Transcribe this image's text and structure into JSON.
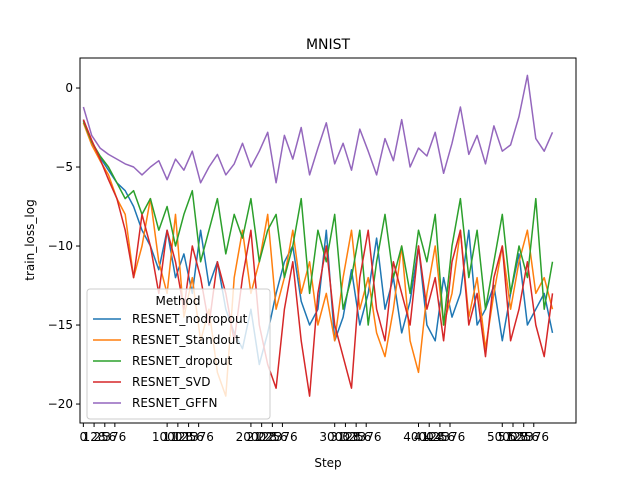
{
  "chart_data": {
    "type": "line",
    "title": "MNIST",
    "xlabel": "Step",
    "ylabel": "train_loss_log",
    "xlim": [
      -40,
      5880
    ],
    "ylim": [
      -21.2,
      1.9
    ],
    "x_ticks": [
      0,
      128,
      256,
      376,
      1000,
      1128,
      1256,
      1376,
      2000,
      2128,
      2256,
      2376,
      3000,
      3128,
      3256,
      3376,
      4000,
      4128,
      4256,
      4376,
      5000,
      5128,
      5256,
      5376
    ],
    "x_tick_labels": [
      "0",
      "128",
      "256",
      "376",
      "1000",
      "1128",
      "1256",
      "1376",
      "2000",
      "2128",
      "2256",
      "2376",
      "3000",
      "3128",
      "3256",
      "3376",
      "4000",
      "4128",
      "4256",
      "4376",
      "5000",
      "5128",
      "5256",
      "5376"
    ],
    "y_ticks": [
      0,
      -5,
      -10,
      -15,
      -20
    ],
    "y_tick_labels": [
      "0",
      "−5",
      "−10",
      "−15",
      "−20"
    ],
    "legend": {
      "title": "Method",
      "position": "lower-left"
    },
    "grid": false,
    "series": [
      {
        "name": "RESNET_nodropout",
        "color": "#1f77b4",
        "x": [
          0,
          100,
          200,
          300,
          400,
          500,
          600,
          700,
          800,
          900,
          1000,
          1100,
          1200,
          1300,
          1400,
          1500,
          1600,
          1700,
          1800,
          1900,
          2000,
          2100,
          2200,
          2300,
          2400,
          2500,
          2600,
          2700,
          2800,
          2900,
          3000,
          3100,
          3200,
          3300,
          3400,
          3500,
          3600,
          3700,
          3800,
          3900,
          4000,
          4100,
          4200,
          4300,
          4400,
          4500,
          4600,
          4700,
          4800,
          4900,
          5000,
          5100,
          5200,
          5300,
          5400,
          5500,
          5600
        ],
        "y": [
          -2,
          -3.5,
          -4.4,
          -5.2,
          -6,
          -6.5,
          -7.5,
          -9,
          -10,
          -11.5,
          -9,
          -12,
          -10.5,
          -13,
          -9,
          -12.5,
          -11,
          -14,
          -15.5,
          -16.5,
          -14,
          -17.5,
          -15.5,
          -13,
          -11,
          -10,
          -13.5,
          -15,
          -14,
          -9,
          -16,
          -14.5,
          -11.5,
          -15,
          -13,
          -9.5,
          -14,
          -12,
          -15.5,
          -13.5,
          -10,
          -15,
          -16,
          -12,
          -14.5,
          -13,
          -9,
          -15,
          -14,
          -12.5,
          -16,
          -13,
          -10.5,
          -15,
          -14,
          -13,
          -15.5
        ]
      },
      {
        "name": "RESNET_Standout",
        "color": "#ff7f0e",
        "x": [
          0,
          100,
          200,
          300,
          400,
          500,
          600,
          700,
          800,
          900,
          1000,
          1100,
          1200,
          1300,
          1400,
          1500,
          1600,
          1700,
          1800,
          1900,
          2000,
          2100,
          2200,
          2300,
          2400,
          2500,
          2600,
          2700,
          2800,
          2900,
          3000,
          3100,
          3200,
          3300,
          3400,
          3500,
          3600,
          3700,
          3800,
          3900,
          4000,
          4100,
          4200,
          4300,
          4400,
          4500,
          4600,
          4700,
          4800,
          4900,
          5000,
          5100,
          5200,
          5300,
          5400,
          5500,
          5600
        ],
        "y": [
          -2.2,
          -3.6,
          -4.6,
          -5.5,
          -7,
          -8,
          -12,
          -10,
          -7,
          -11,
          -13,
          -8,
          -14.5,
          -12,
          -16,
          -14,
          -18,
          -19.5,
          -12,
          -9,
          -13,
          -11,
          -8,
          -14,
          -12,
          -9,
          -13,
          -11,
          -15,
          -13,
          -16,
          -12,
          -9,
          -14,
          -12,
          -15.5,
          -17,
          -14,
          -10,
          -16,
          -18,
          -13,
          -10,
          -15,
          -13,
          -9,
          -14.5,
          -12,
          -16.5,
          -13,
          -10,
          -14,
          -11,
          -9,
          -13,
          -12,
          -14
        ]
      },
      {
        "name": "RESNET_dropout",
        "color": "#2ca02c",
        "x": [
          0,
          100,
          200,
          300,
          400,
          500,
          600,
          700,
          800,
          900,
          1000,
          1100,
          1200,
          1300,
          1400,
          1500,
          1600,
          1700,
          1800,
          1900,
          2000,
          2100,
          2200,
          2300,
          2400,
          2500,
          2600,
          2700,
          2800,
          2900,
          3000,
          3100,
          3200,
          3300,
          3400,
          3500,
          3600,
          3700,
          3800,
          3900,
          4000,
          4100,
          4200,
          4300,
          4400,
          4500,
          4600,
          4700,
          4800,
          4900,
          5000,
          5100,
          5200,
          5300,
          5400,
          5500,
          5600
        ],
        "y": [
          -2.1,
          -3.4,
          -4.3,
          -5,
          -6,
          -7,
          -6.5,
          -8,
          -7,
          -9,
          -7.5,
          -10,
          -8,
          -6.5,
          -11,
          -9,
          -7,
          -10.5,
          -8,
          -9.5,
          -7,
          -11,
          -9,
          -8,
          -12,
          -10,
          -7,
          -13,
          -9,
          -11,
          -8,
          -14,
          -12,
          -9,
          -15,
          -11,
          -8,
          -12,
          -10,
          -13,
          -9,
          -11,
          -8,
          -15,
          -10,
          -7,
          -12,
          -9,
          -14,
          -11,
          -8,
          -13,
          -10,
          -12,
          -7,
          -14,
          -11
        ]
      },
      {
        "name": "RESNET_SVD",
        "color": "#d62728",
        "x": [
          0,
          100,
          200,
          300,
          400,
          500,
          600,
          700,
          800,
          900,
          1000,
          1100,
          1200,
          1300,
          1400,
          1500,
          1600,
          1700,
          1800,
          1900,
          2000,
          2100,
          2200,
          2300,
          2400,
          2500,
          2600,
          2700,
          2800,
          2900,
          3000,
          3100,
          3200,
          3300,
          3400,
          3500,
          3600,
          3700,
          3800,
          3900,
          4000,
          4100,
          4200,
          4300,
          4400,
          4500,
          4600,
          4700,
          4800,
          4900,
          5000,
          5100,
          5200,
          5300,
          5400,
          5500,
          5600
        ],
        "y": [
          -2,
          -3.3,
          -4.5,
          -5.8,
          -7,
          -9,
          -12,
          -8,
          -10,
          -13,
          -9,
          -11,
          -14,
          -10,
          -12,
          -15,
          -11,
          -13,
          -16,
          -12,
          -9,
          -15,
          -17.5,
          -19,
          -14,
          -11,
          -16,
          -19.5,
          -13,
          -10,
          -15,
          -17,
          -19,
          -12,
          -9,
          -14,
          -16,
          -11,
          -13,
          -15,
          -10,
          -14,
          -12,
          -16,
          -11,
          -9,
          -15,
          -13,
          -17,
          -12,
          -10,
          -16,
          -14,
          -11,
          -15,
          -17,
          -13
        ]
      },
      {
        "name": "RESNET_GFFN",
        "color": "#9467bd",
        "x": [
          0,
          100,
          200,
          300,
          400,
          500,
          600,
          700,
          800,
          900,
          1000,
          1100,
          1200,
          1300,
          1400,
          1500,
          1600,
          1700,
          1800,
          1900,
          2000,
          2100,
          2200,
          2300,
          2400,
          2500,
          2600,
          2700,
          2800,
          2900,
          3000,
          3100,
          3200,
          3300,
          3400,
          3500,
          3600,
          3700,
          3800,
          3900,
          4000,
          4100,
          4200,
          4300,
          4400,
          4500,
          4600,
          4700,
          4800,
          4900,
          5000,
          5100,
          5200,
          5300,
          5400,
          5500,
          5600
        ],
        "y": [
          -1.2,
          -3,
          -3.8,
          -4.2,
          -4.5,
          -4.8,
          -5,
          -5.5,
          -5,
          -4.6,
          -5.8,
          -4.5,
          -5.2,
          -4,
          -6,
          -5,
          -4.2,
          -5.5,
          -4.8,
          -3.5,
          -5,
          -4,
          -2.8,
          -6,
          -3,
          -4.5,
          -2.5,
          -5.5,
          -3.8,
          -2.2,
          -4.8,
          -3.5,
          -5.2,
          -2.6,
          -4,
          -5.5,
          -3.2,
          -4.6,
          -2,
          -5,
          -3.8,
          -4.3,
          -2.8,
          -5.4,
          -3.5,
          -1.2,
          -4.2,
          -3,
          -4.8,
          -2.4,
          -4,
          -3.6,
          -1.8,
          0.8,
          -3.2,
          -4,
          -2.8
        ]
      }
    ]
  }
}
